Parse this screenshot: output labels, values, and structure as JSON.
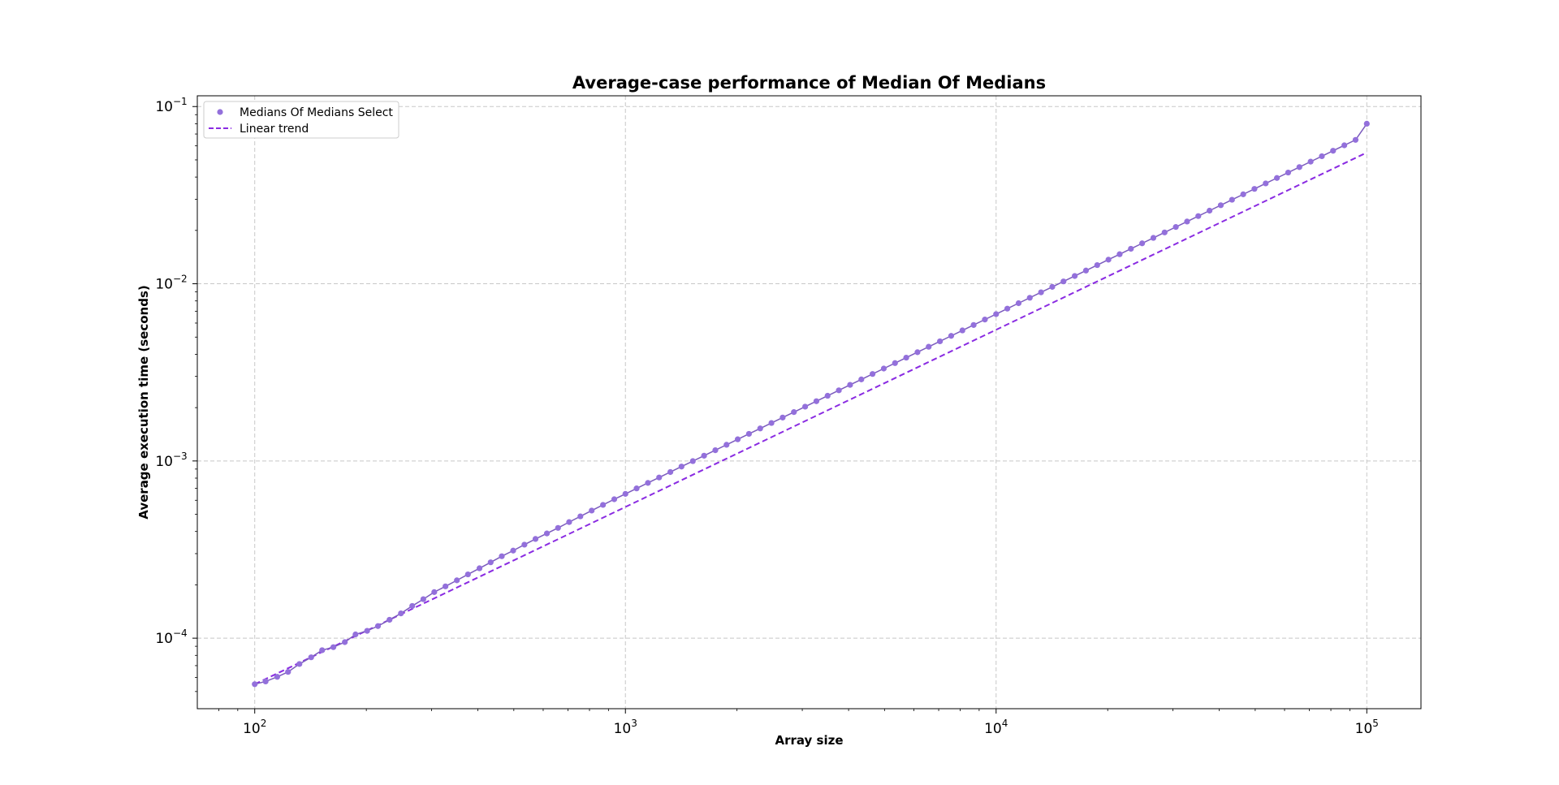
{
  "chart_data": {
    "type": "line",
    "title": "Average-case performance of Median Of Medians",
    "xlabel": "Array size",
    "ylabel": "Average execution time (seconds)",
    "xscale": "log",
    "yscale": "log",
    "xlim": [
      70,
      140000
    ],
    "ylim": [
      4e-05,
      0.115
    ],
    "grid": true,
    "legend_position": "top-left",
    "x_ticks": [
      {
        "base": "10",
        "exp": "2",
        "value": 100
      },
      {
        "base": "10",
        "exp": "3",
        "value": 1000
      },
      {
        "base": "10",
        "exp": "4",
        "value": 10000
      },
      {
        "base": "10",
        "exp": "5",
        "value": 100000
      }
    ],
    "y_ticks": [
      {
        "base": "10",
        "exp": "−4",
        "value": 0.0001
      },
      {
        "base": "10",
        "exp": "−3",
        "value": 0.001
      },
      {
        "base": "10",
        "exp": "−2",
        "value": 0.01
      },
      {
        "base": "10",
        "exp": "−1",
        "value": 0.1
      }
    ],
    "series": [
      {
        "name": "Medians Of Medians Select",
        "kind": "line+markers",
        "color": "#9370db",
        "line_color": "#7b5bbd",
        "x": [
          100,
          107,
          115,
          123,
          132,
          142,
          152,
          163,
          175,
          187,
          201,
          215,
          231,
          248,
          266,
          285,
          305,
          327,
          351,
          376,
          404,
          433,
          464,
          498,
          534,
          572,
          614,
          658,
          705,
          756,
          811,
          870,
          933,
          1000,
          1072,
          1150,
          1233,
          1322,
          1417,
          1520,
          1630,
          1748,
          1874,
          2009,
          2154,
          2310,
          2477,
          2656,
          2848,
          3054,
          3275,
          3511,
          3765,
          4037,
          4329,
          4642,
          4977,
          5337,
          5722,
          6136,
          6579,
          7055,
          7565,
          8111,
          8697,
          9326,
          10000,
          10723,
          11498,
          12328,
          13219,
          14175,
          15199,
          16298,
          17475,
          18738,
          20092,
          21544,
          23101,
          24771,
          26561,
          28480,
          30539,
          32745,
          35112,
          37649,
          40370,
          43288,
          46416,
          49770,
          53367,
          57224,
          61359,
          65793,
          70548,
          75646,
          81113,
          86975,
          93260,
          100000
        ],
        "y": [
          5.5e-05,
          5.7e-05,
          6.05e-05,
          6.45e-05,
          7.15e-05,
          7.8e-05,
          8.55e-05,
          8.9e-05,
          9.5e-05,
          0.000105,
          0.00011,
          0.000117,
          0.000127,
          0.000138,
          0.000152,
          0.000166,
          0.000182,
          0.000196,
          0.000212,
          0.000229,
          0.000248,
          0.000268,
          0.00029,
          0.000312,
          0.000337,
          0.000363,
          0.00039,
          0.000419,
          0.000452,
          0.000487,
          0.000525,
          0.000565,
          0.000608,
          0.000652,
          0.0007,
          0.000752,
          0.000807,
          0.000866,
          0.00093,
          0.000998,
          0.001071,
          0.00115,
          0.001234,
          0.001325,
          0.001422,
          0.001526,
          0.001638,
          0.001758,
          0.001887,
          0.002025,
          0.002174,
          0.002333,
          0.002504,
          0.002688,
          0.002885,
          0.003096,
          0.003323,
          0.003567,
          0.003828,
          0.004109,
          0.00441,
          0.004733,
          0.00508,
          0.005453,
          0.005852,
          0.006281,
          0.006742,
          0.007236,
          0.007766,
          0.008335,
          0.008946,
          0.009602,
          0.010306,
          0.011061,
          0.011872,
          0.012742,
          0.013676,
          0.014679,
          0.015755,
          0.01691,
          0.01815,
          0.019481,
          0.020909,
          0.022442,
          0.024087,
          0.025853,
          0.027748,
          0.029782,
          0.031966,
          0.034309,
          0.036824,
          0.039524,
          0.042421,
          0.045531,
          0.048869,
          0.052452,
          0.056297,
          0.060424,
          0.064854,
          0.08
        ]
      },
      {
        "name": "Linear trend",
        "kind": "dashed-line",
        "color": "#8a2be2",
        "x": [
          100,
          100000
        ],
        "y": [
          5.5e-05,
          0.055
        ]
      }
    ]
  }
}
